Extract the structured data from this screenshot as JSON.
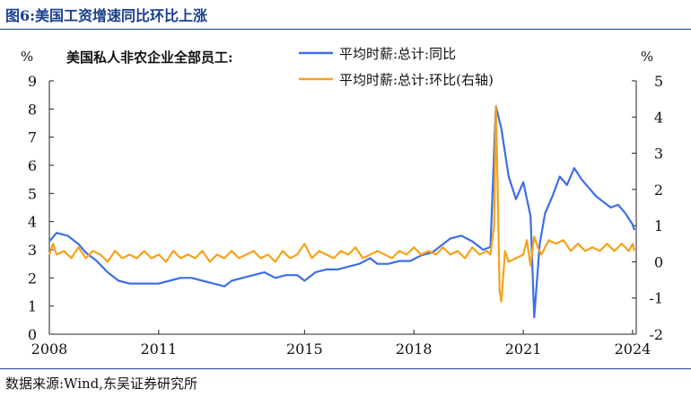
{
  "figure_title": "图6:美国工资增速同比环比上涨",
  "source": "数据来源:Wind,东吴证券研究所",
  "chart_data": {
    "type": "line",
    "title": "美国私人非农企业全部员工:",
    "x_ticks": [
      "2008",
      "2011",
      "2015",
      "2018",
      "2021",
      "2024"
    ],
    "x_tick_years": [
      2008,
      2011,
      2015,
      2018,
      2021,
      2024
    ],
    "xlim": [
      2008,
      2024.1
    ],
    "left_axis": {
      "unit": "%",
      "ylim": [
        0,
        9
      ],
      "ticks": [
        0,
        1,
        2,
        3,
        4,
        5,
        6,
        7,
        8,
        9
      ]
    },
    "right_axis": {
      "unit": "%",
      "ylim": [
        -2,
        5
      ],
      "ticks": [
        -2,
        -1,
        0,
        1,
        2,
        3,
        4,
        5
      ]
    },
    "legend_placement": "top-center",
    "grid": false,
    "series": [
      {
        "name": "平均时薪:总计:同比",
        "axis": "left",
        "color": "#3d6ee8",
        "points": [
          [
            2008.0,
            3.3
          ],
          [
            2008.2,
            3.6
          ],
          [
            2008.5,
            3.5
          ],
          [
            2008.8,
            3.2
          ],
          [
            2009.0,
            2.9
          ],
          [
            2009.3,
            2.6
          ],
          [
            2009.6,
            2.2
          ],
          [
            2009.9,
            1.9
          ],
          [
            2010.2,
            1.8
          ],
          [
            2010.5,
            1.8
          ],
          [
            2010.8,
            1.8
          ],
          [
            2011.0,
            1.8
          ],
          [
            2011.3,
            1.9
          ],
          [
            2011.6,
            2.0
          ],
          [
            2011.9,
            2.0
          ],
          [
            2012.2,
            1.9
          ],
          [
            2012.5,
            1.8
          ],
          [
            2012.8,
            1.7
          ],
          [
            2013.0,
            1.9
          ],
          [
            2013.3,
            2.0
          ],
          [
            2013.6,
            2.1
          ],
          [
            2013.9,
            2.2
          ],
          [
            2014.2,
            2.0
          ],
          [
            2014.5,
            2.1
          ],
          [
            2014.8,
            2.1
          ],
          [
            2015.0,
            1.9
          ],
          [
            2015.3,
            2.2
          ],
          [
            2015.6,
            2.3
          ],
          [
            2015.9,
            2.3
          ],
          [
            2016.2,
            2.4
          ],
          [
            2016.5,
            2.5
          ],
          [
            2016.8,
            2.7
          ],
          [
            2017.0,
            2.5
          ],
          [
            2017.3,
            2.5
          ],
          [
            2017.6,
            2.6
          ],
          [
            2017.9,
            2.6
          ],
          [
            2018.2,
            2.8
          ],
          [
            2018.5,
            2.9
          ],
          [
            2018.8,
            3.2
          ],
          [
            2019.0,
            3.4
          ],
          [
            2019.3,
            3.5
          ],
          [
            2019.6,
            3.3
          ],
          [
            2019.9,
            3.0
          ],
          [
            2020.1,
            3.1
          ],
          [
            2020.25,
            8.1
          ],
          [
            2020.4,
            7.3
          ],
          [
            2020.6,
            5.6
          ],
          [
            2020.8,
            4.8
          ],
          [
            2021.0,
            5.4
          ],
          [
            2021.2,
            4.2
          ],
          [
            2021.3,
            0.6
          ],
          [
            2021.45,
            3.2
          ],
          [
            2021.6,
            4.3
          ],
          [
            2021.8,
            4.9
          ],
          [
            2022.0,
            5.6
          ],
          [
            2022.2,
            5.3
          ],
          [
            2022.4,
            5.9
          ],
          [
            2022.6,
            5.5
          ],
          [
            2022.8,
            5.2
          ],
          [
            2023.0,
            4.9
          ],
          [
            2023.2,
            4.7
          ],
          [
            2023.4,
            4.5
          ],
          [
            2023.6,
            4.6
          ],
          [
            2023.8,
            4.3
          ],
          [
            2024.0,
            3.9
          ],
          [
            2024.05,
            3.7
          ]
        ]
      },
      {
        "name": "平均时薪:总计:环比(右轴)",
        "axis": "right",
        "color": "#f5a21b",
        "points": [
          [
            2008.0,
            0.2
          ],
          [
            2008.1,
            0.5
          ],
          [
            2008.2,
            0.2
          ],
          [
            2008.4,
            0.3
          ],
          [
            2008.6,
            0.1
          ],
          [
            2008.8,
            0.4
          ],
          [
            2009.0,
            0.1
          ],
          [
            2009.2,
            0.3
          ],
          [
            2009.4,
            0.2
          ],
          [
            2009.6,
            0.0
          ],
          [
            2009.8,
            0.3
          ],
          [
            2010.0,
            0.1
          ],
          [
            2010.2,
            0.2
          ],
          [
            2010.4,
            0.1
          ],
          [
            2010.6,
            0.3
          ],
          [
            2010.8,
            0.1
          ],
          [
            2011.0,
            0.2
          ],
          [
            2011.2,
            0.0
          ],
          [
            2011.4,
            0.3
          ],
          [
            2011.6,
            0.1
          ],
          [
            2011.8,
            0.2
          ],
          [
            2012.0,
            0.1
          ],
          [
            2012.2,
            0.3
          ],
          [
            2012.4,
            0.0
          ],
          [
            2012.6,
            0.2
          ],
          [
            2012.8,
            0.1
          ],
          [
            2013.0,
            0.3
          ],
          [
            2013.2,
            0.1
          ],
          [
            2013.4,
            0.2
          ],
          [
            2013.6,
            0.3
          ],
          [
            2013.8,
            0.1
          ],
          [
            2014.0,
            0.2
          ],
          [
            2014.2,
            0.0
          ],
          [
            2014.4,
            0.3
          ],
          [
            2014.6,
            0.1
          ],
          [
            2014.8,
            0.2
          ],
          [
            2015.0,
            0.5
          ],
          [
            2015.2,
            0.1
          ],
          [
            2015.4,
            0.3
          ],
          [
            2015.6,
            0.2
          ],
          [
            2015.8,
            0.1
          ],
          [
            2016.0,
            0.3
          ],
          [
            2016.2,
            0.2
          ],
          [
            2016.4,
            0.4
          ],
          [
            2016.6,
            0.1
          ],
          [
            2016.8,
            0.2
          ],
          [
            2017.0,
            0.3
          ],
          [
            2017.2,
            0.2
          ],
          [
            2017.4,
            0.1
          ],
          [
            2017.6,
            0.3
          ],
          [
            2017.8,
            0.2
          ],
          [
            2018.0,
            0.4
          ],
          [
            2018.2,
            0.2
          ],
          [
            2018.4,
            0.3
          ],
          [
            2018.6,
            0.2
          ],
          [
            2018.8,
            0.4
          ],
          [
            2019.0,
            0.2
          ],
          [
            2019.2,
            0.3
          ],
          [
            2019.4,
            0.1
          ],
          [
            2019.6,
            0.4
          ],
          [
            2019.8,
            0.2
          ],
          [
            2020.0,
            0.3
          ],
          [
            2020.1,
            0.2
          ],
          [
            2020.2,
            1.0
          ],
          [
            2020.25,
            4.3
          ],
          [
            2020.3,
            2.0
          ],
          [
            2020.35,
            -0.8
          ],
          [
            2020.4,
            -1.1
          ],
          [
            2020.5,
            0.3
          ],
          [
            2020.6,
            0.0
          ],
          [
            2020.8,
            0.1
          ],
          [
            2021.0,
            0.2
          ],
          [
            2021.1,
            0.6
          ],
          [
            2021.2,
            -0.1
          ],
          [
            2021.3,
            0.7
          ],
          [
            2021.4,
            0.4
          ],
          [
            2021.5,
            0.2
          ],
          [
            2021.7,
            0.6
          ],
          [
            2021.9,
            0.5
          ],
          [
            2022.1,
            0.6
          ],
          [
            2022.3,
            0.3
          ],
          [
            2022.5,
            0.5
          ],
          [
            2022.7,
            0.3
          ],
          [
            2022.9,
            0.4
          ],
          [
            2023.1,
            0.3
          ],
          [
            2023.3,
            0.5
          ],
          [
            2023.5,
            0.3
          ],
          [
            2023.7,
            0.5
          ],
          [
            2023.9,
            0.3
          ],
          [
            2024.0,
            0.5
          ],
          [
            2024.05,
            0.3
          ]
        ]
      }
    ]
  }
}
